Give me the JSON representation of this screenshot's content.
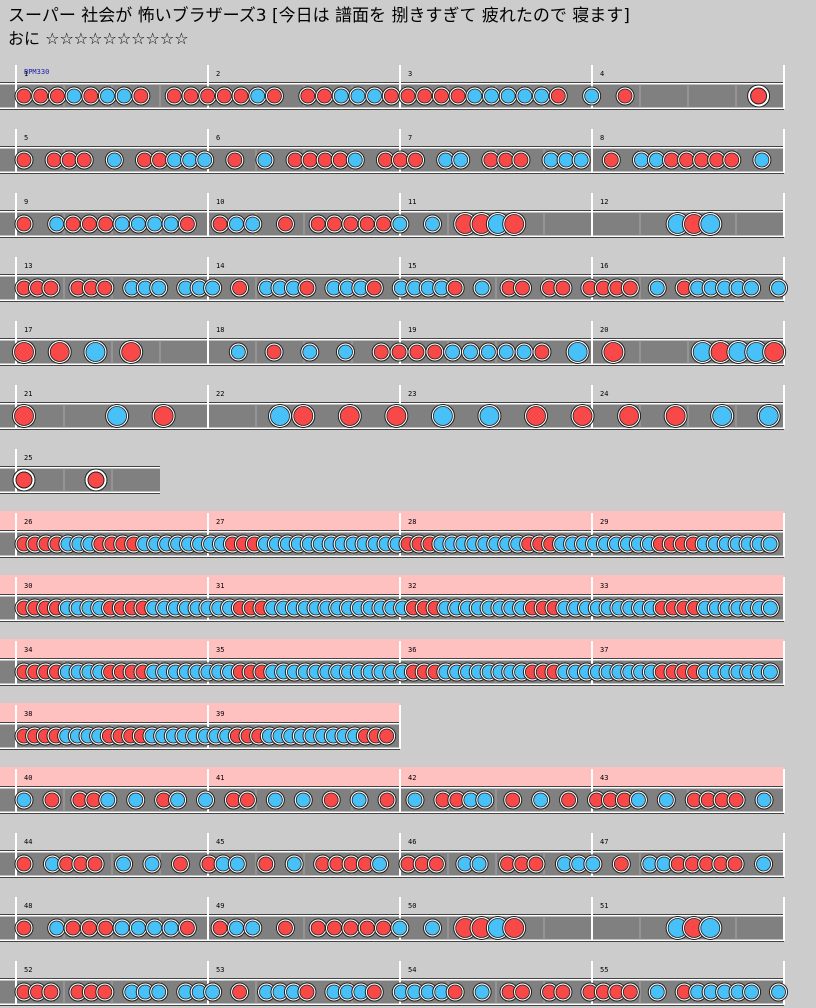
{
  "title": "スーパー 社会が 怖いブラザーズ3 [今日は 譜面を 捌きすぎて 疲れたので 寝ます]",
  "difficulty": "おに",
  "stars": "☆☆☆☆☆☆☆☆☆☆",
  "bpm_label": "BPM330",
  "colors": {
    "don": "#f84848",
    "ka": "#48c0f8",
    "lane": "#808080",
    "gogo": "#ffc0c0",
    "page": "#cccccc"
  },
  "rows": [
    {
      "measures": [
        1,
        2,
        3,
        4
      ],
      "gogo": false,
      "notes": "dddkdkkd-dddddkd-ddkkkdddddkkkkkd-k-d-------B-"
    },
    {
      "measures": [
        5,
        6,
        7,
        8
      ],
      "gogo": false,
      "notes": "d-ddd-k-ddkkk-d-k-ddddk-ddd-kk-ddd-kkk-d-kkddddd-k-"
    },
    {
      "measures": [
        9,
        10,
        11,
        12
      ],
      "gogo": false,
      "notes": "d-kdddkkkkd-dkk-d-dddddk-k-DDKD---------KDK----"
    },
    {
      "measures": [
        13,
        14,
        15,
        16
      ],
      "gogo": false,
      "notes": "ddd-ddd-kkk-kkk-d-kkkd-kkkd-kkkkd-k-dd-dd-dddd-k-dkkkkk-k"
    },
    {
      "measures": [
        17,
        18,
        19,
        20
      ],
      "gogo": false,
      "notes": "D-D-K-D-----k-d-k-k-ddddkkkkkd-K-D----KDKKD"
    },
    {
      "measures": [
        21,
        22,
        23,
        24
      ],
      "gogo": false,
      "notes": "D---K-D----KD-D-D-K-K-D-D-D-D-K-K"
    },
    {
      "measures": [
        25
      ],
      "gogo": false,
      "partial_measures": 0.75,
      "notes": "BB"
    },
    {
      "measures": [
        26,
        27,
        28,
        29
      ],
      "gogo": true,
      "notes": "ddddkkkddddkkkkkkkkdddkkkkkkkkkkkkkdddkkkkkkkkdddkkkkkkkkkddddkkkkkkkk"
    },
    {
      "measures": [
        30,
        31,
        32,
        33
      ],
      "gogo": true,
      "notes": "ddddkkkkddddkkkkkkkkdddkkkkkkkkkkkkkdddkkkkkkkkdddkkkkkkkkkddddkkkkkkkk"
    },
    {
      "measures": [
        34,
        35,
        36,
        37
      ],
      "gogo": true,
      "notes": "ddddkkkkddddkkkkkkkkdddkkkkkkkkkkkkkdddkkkkkkkkdddkkkkkkkkkddddkkkkkkkk"
    },
    {
      "measures": [
        38,
        39
      ],
      "gogo": true,
      "partial_measures": 2,
      "notes": "ddddkkkkddddkkkkkkkkdddkkkkkkkkkdddd"
    },
    {
      "measures": [
        40,
        41,
        42,
        43
      ],
      "gogo": true,
      "notes": "k-d-ddk-k-dk-k-dd-k-k-d-k-d-k-ddkk-d-k-d-dddk-k-dddd-k-"
    },
    {
      "measures": [
        44,
        45,
        46,
        47
      ],
      "gogo": false,
      "notes": "d-kddd-k-k-d-dkk-d-k-ddddk-ddd-kk-ddd-kkk-d-kkddddd-k-"
    },
    {
      "measures": [
        48,
        49,
        50,
        51
      ],
      "gogo": false,
      "notes": "d-kdddkkkkd-dkk-d-dddddk-k-DDKD---------KDK----"
    },
    {
      "measures": [
        52,
        53,
        54,
        55
      ],
      "gogo": false,
      "notes": "ddd-ddd-kkk-kkk-d-kkkd-kkkd-kkkkd-k-dd-dd-dddd-k-dkkkkk-k"
    }
  ]
}
